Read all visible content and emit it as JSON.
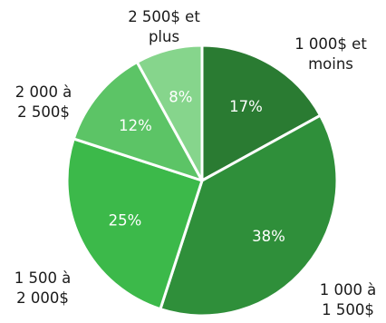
{
  "chart_data": {
    "type": "pie",
    "title": "",
    "slices": [
      {
        "label_lines": [
          "1 000$ et",
          "moins"
        ],
        "value": 17,
        "value_label": "17%",
        "color": "#2a7b32"
      },
      {
        "label_lines": [
          "1 000 à",
          "1 500$"
        ],
        "value": 38,
        "value_label": "38%",
        "color": "#2f8f3a"
      },
      {
        "label_lines": [
          "1 500 à",
          "2 000$"
        ],
        "value": 25,
        "value_label": "25%",
        "color": "#3cb94a"
      },
      {
        "label_lines": [
          "2 000 à",
          "2 500$"
        ],
        "value": 12,
        "value_label": "12%",
        "color": "#5cc466"
      },
      {
        "label_lines": [
          "2 500$ et",
          "plus"
        ],
        "value": 8,
        "value_label": "8%",
        "color": "#86d58c"
      }
    ],
    "start": "top",
    "direction": "clockwise",
    "slice_border_color": "#ffffff",
    "legend": "none"
  }
}
